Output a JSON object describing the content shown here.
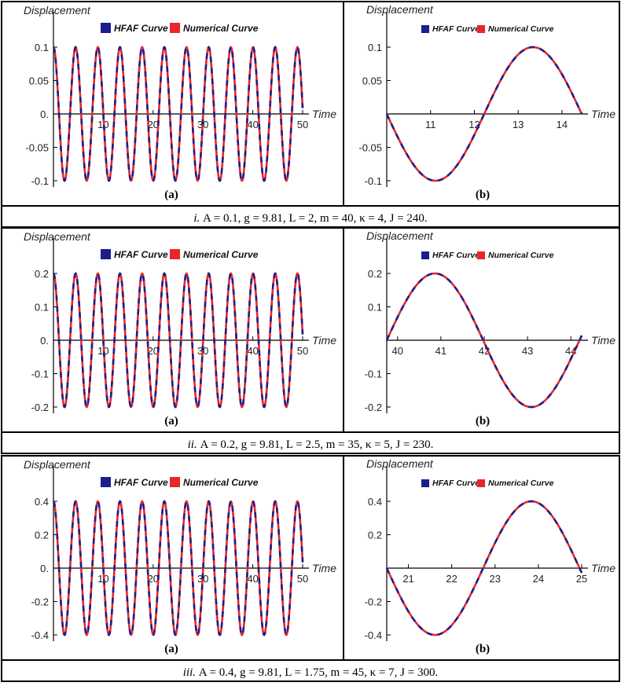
{
  "colors": {
    "hfaf": "#1a1f8c",
    "numerical": "#e8262a",
    "border": "#000000",
    "axis": "#000000"
  },
  "common": {
    "ylabel": "Displacement",
    "xlabel": "Time",
    "legend": [
      "HFAF Curve",
      "Numerical Curve"
    ],
    "label_a": "(a)",
    "label_b": "(b)"
  },
  "captions": [
    {
      "prefix": "i.",
      "text": "A = 0.1,   g = 9.81,   L = 2,   m = 40,   κ = 4,   J = 240."
    },
    {
      "prefix": "ii.",
      "text": "A = 0.2,   g = 9.81,   L = 2.5,   m = 35,   κ = 5,   J = 230."
    },
    {
      "prefix": "iii.",
      "text": "A = 0.4,   g = 9.81,   L = 1.75,   m = 45,   κ = 7,   J = 300."
    }
  ],
  "chart_data": [
    {
      "type": "line",
      "row": 0,
      "panel": "a",
      "amplitude": 0.1,
      "period": 4.45,
      "xlim": [
        0,
        50
      ],
      "ylim": [
        -0.1,
        0.1
      ],
      "xticks": [
        10,
        20,
        30,
        40,
        50
      ],
      "yticks": [
        0.1,
        0.05,
        -0.05,
        -0.1
      ],
      "ytick_labels": [
        "0.1",
        "0.05",
        "-0.05",
        "-0.1"
      ],
      "zero_label": "0.",
      "series": [
        {
          "name": "HFAF Curve"
        },
        {
          "name": "Numerical Curve"
        }
      ]
    },
    {
      "type": "line",
      "row": 0,
      "panel": "b",
      "amplitude": 0.1,
      "period": 4.45,
      "xlim": [
        10.0,
        14.45
      ],
      "ylim": [
        -0.1,
        0.1
      ],
      "xticks": [
        11,
        12,
        13,
        14
      ],
      "yticks": [
        0.1,
        0.05,
        -0.05,
        -0.1
      ],
      "ytick_labels": [
        "0.1",
        "0.05",
        "-0.05",
        "-0.1"
      ],
      "series": [
        {
          "name": "HFAF Curve"
        },
        {
          "name": "Numerical Curve"
        }
      ]
    },
    {
      "type": "line",
      "row": 1,
      "panel": "a",
      "amplitude": 0.2,
      "period": 4.45,
      "xlim": [
        0,
        50
      ],
      "ylim": [
        -0.2,
        0.2
      ],
      "xticks": [
        10,
        20,
        30,
        40,
        50
      ],
      "yticks": [
        0.2,
        0.1,
        -0.1,
        -0.2
      ],
      "ytick_labels": [
        "0.2",
        "0.1",
        "-0.1",
        "-0.2"
      ],
      "zero_label": "0.",
      "series": [
        {
          "name": "HFAF Curve"
        },
        {
          "name": "Numerical Curve"
        }
      ]
    },
    {
      "type": "line",
      "row": 1,
      "panel": "b",
      "amplitude": 0.2,
      "period": 4.45,
      "xlim": [
        39.75,
        44.25
      ],
      "ylim": [
        -0.2,
        0.2
      ],
      "xticks": [
        40,
        41,
        42,
        43,
        44
      ],
      "yticks": [
        0.2,
        0.1,
        -0.1,
        -0.2
      ],
      "ytick_labels": [
        "0.2",
        "0.1",
        "-0.1",
        "-0.2"
      ],
      "series": [
        {
          "name": "HFAF Curve"
        },
        {
          "name": "Numerical Curve"
        }
      ]
    },
    {
      "type": "line",
      "row": 2,
      "panel": "a",
      "amplitude": 0.4,
      "period": 4.45,
      "xlim": [
        0,
        50
      ],
      "ylim": [
        -0.4,
        0.4
      ],
      "xticks": [
        10,
        20,
        30,
        40,
        50
      ],
      "yticks": [
        0.4,
        0.2,
        -0.2,
        -0.4
      ],
      "ytick_labels": [
        "0.4",
        "0.2",
        "-0.2",
        "-0.4"
      ],
      "zero_label": "0.",
      "series": [
        {
          "name": "HFAF Curve"
        },
        {
          "name": "Numerical Curve"
        }
      ]
    },
    {
      "type": "line",
      "row": 2,
      "panel": "b",
      "amplitude": 0.4,
      "period": 4.45,
      "xlim": [
        20.5,
        25.0
      ],
      "ylim": [
        -0.4,
        0.4
      ],
      "xticks": [
        21,
        22,
        23,
        24,
        25
      ],
      "yticks": [
        0.4,
        0.2,
        -0.2,
        -0.4
      ],
      "ytick_labels": [
        "0.4",
        "0.2",
        "-0.2",
        "-0.4"
      ],
      "series": [
        {
          "name": "HFAF Curve"
        },
        {
          "name": "Numerical Curve"
        }
      ]
    }
  ]
}
